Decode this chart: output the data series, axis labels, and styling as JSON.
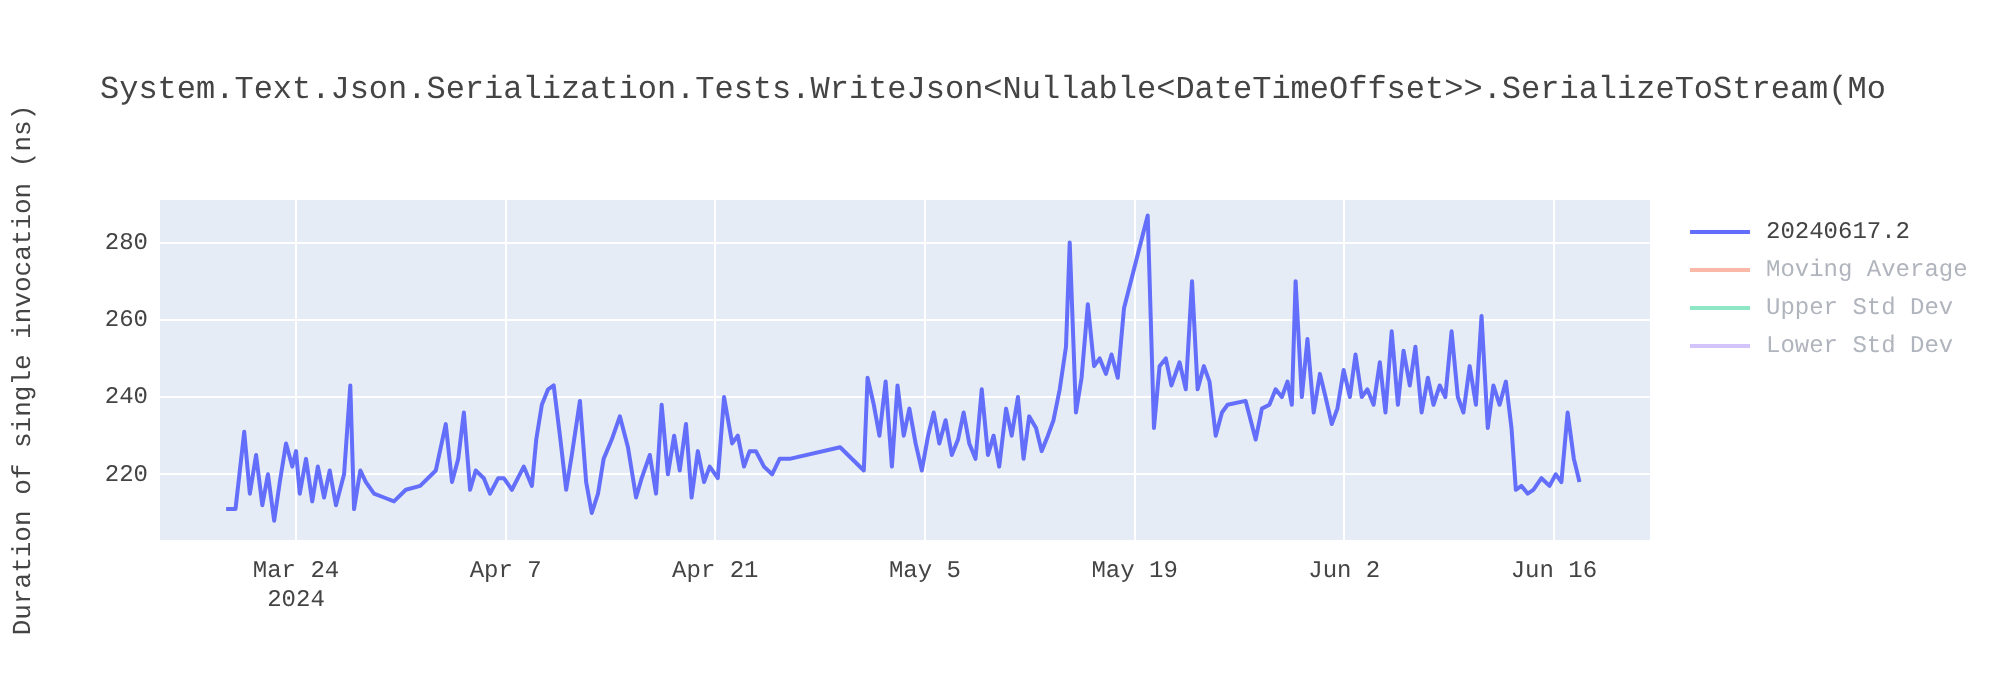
{
  "chart_data": {
    "type": "line",
    "title": "System.Text.Json.Serialization.Tests.WriteJson<Nullable<DateTimeOffset>>.SerializeToStream(Mo",
    "ylabel": "Duration of single invocation (ns)",
    "x": [
      "2024-03-19T08:00",
      "2024-03-19T23:00",
      "2024-03-20T13:00",
      "2024-03-20T22:00",
      "2024-03-21T08:00",
      "2024-03-21T18:00",
      "2024-03-22T03:00",
      "2024-03-22T13:00",
      "2024-03-22T22:00",
      "2024-03-23T08:00",
      "2024-03-23T18:00",
      "2024-03-24T00:00",
      "2024-03-24T06:00",
      "2024-03-24T16:00",
      "2024-03-25T02:00",
      "2024-03-25T11:00",
      "2024-03-25T21:00",
      "2024-03-26T06:00",
      "2024-03-26T16:00",
      "2024-03-27T05:00",
      "2024-03-27T15:00",
      "2024-03-27T21:00",
      "2024-03-28T07:00",
      "2024-03-28T16:00",
      "2024-03-29T05:00",
      "2024-03-29T21:00",
      "2024-03-30T13:00",
      "2024-03-31T08:00",
      "2024-04-01T07:00",
      "2024-04-02T08:00",
      "2024-04-03T00:00",
      "2024-04-03T10:00",
      "2024-04-03T20:00",
      "2024-04-04T05:00",
      "2024-04-04T15:00",
      "2024-04-05T00:00",
      "2024-04-05T13:00",
      "2024-04-05T23:00",
      "2024-04-06T12:00",
      "2024-04-06T21:00",
      "2024-04-07T10:00",
      "2024-04-08T05:00",
      "2024-04-08T18:00",
      "2024-04-09T01:00",
      "2024-04-09T10:00",
      "2024-04-09T20:00",
      "2024-04-10T05:00",
      "2024-04-10T15:00",
      "2024-04-11T01:00",
      "2024-04-11T10:00",
      "2024-04-11T23:00",
      "2024-04-12T09:00",
      "2024-04-12T18:00",
      "2024-04-13T04:00",
      "2024-04-13T13:00",
      "2024-04-14T02:00",
      "2024-04-14T15:00",
      "2024-04-15T04:00",
      "2024-04-15T17:00",
      "2024-04-16T02:00",
      "2024-04-16T15:00",
      "2024-04-17T01:00",
      "2024-04-17T10:00",
      "2024-04-17T20:00",
      "2024-04-18T06:00",
      "2024-04-18T15:00",
      "2024-04-19T01:00",
      "2024-04-19T10:00",
      "2024-04-19T20:00",
      "2024-04-20T06:00",
      "2024-04-20T15:00",
      "2024-04-21T04:00",
      "2024-04-21T14:00",
      "2024-04-22T03:00",
      "2024-04-22T12:00",
      "2024-04-22T22:00",
      "2024-04-23T07:00",
      "2024-04-23T17:00",
      "2024-04-24T06:00",
      "2024-04-24T19:00",
      "2024-04-25T07:00",
      "2024-04-25T23:00",
      "2024-04-29T08:00",
      "2024-04-30T22:00",
      "2024-05-01T04:00",
      "2024-05-01T14:00",
      "2024-05-01T23:00",
      "2024-05-02T09:00",
      "2024-05-02T19:00",
      "2024-05-03T04:00",
      "2024-05-03T14:00",
      "2024-05-03T23:00",
      "2024-05-04T09:00",
      "2024-05-04T19:00",
      "2024-05-05T05:00",
      "2024-05-05T14:00",
      "2024-05-05T23:00",
      "2024-05-06T09:00",
      "2024-05-06T19:00",
      "2024-05-07T05:00",
      "2024-05-07T14:00",
      "2024-05-07T23:00",
      "2024-05-08T09:00",
      "2024-05-08T19:00",
      "2024-05-09T05:00",
      "2024-05-09T14:00",
      "2024-05-09T23:00",
      "2024-05-10T10:00",
      "2024-05-10T19:00",
      "2024-05-11T05:00",
      "2024-05-11T14:00",
      "2024-05-11T23:00",
      "2024-05-12T10:00",
      "2024-05-12T19:00",
      "2024-05-13T05:00",
      "2024-05-13T14:00",
      "2024-05-14T00:00",
      "2024-05-14T10:00",
      "2024-05-14T16:00",
      "2024-05-15T02:00",
      "2024-05-15T11:00",
      "2024-05-15T21:00",
      "2024-05-16T07:00",
      "2024-05-16T16:00",
      "2024-05-17T02:00",
      "2024-05-17T11:00",
      "2024-05-17T21:00",
      "2024-05-18T07:00",
      "2024-05-19T21:00",
      "2024-05-20T07:00",
      "2024-05-20T16:00",
      "2024-05-21T02:00",
      "2024-05-21T11:00",
      "2024-05-22T00:00",
      "2024-05-22T10:00",
      "2024-05-22T20:00",
      "2024-05-23T05:00",
      "2024-05-23T15:00",
      "2024-05-24T00:00",
      "2024-05-24T10:00",
      "2024-05-24T20:00",
      "2024-05-25T05:00",
      "2024-05-26T10:00",
      "2024-05-27T02:00",
      "2024-05-27T12:00",
      "2024-05-28T00:00",
      "2024-05-28T10:00",
      "2024-05-28T20:00",
      "2024-05-29T05:00",
      "2024-05-29T12:00",
      "2024-05-29T18:00",
      "2024-05-30T04:00",
      "2024-05-30T13:00",
      "2024-05-30T23:00",
      "2024-05-31T09:00",
      "2024-05-31T18:00",
      "2024-06-01T04:00",
      "2024-06-01T13:00",
      "2024-06-01T23:00",
      "2024-06-02T09:00",
      "2024-06-02T18:00",
      "2024-06-03T04:00",
      "2024-06-03T13:00",
      "2024-06-03T23:00",
      "2024-06-04T09:00",
      "2024-06-04T18:00",
      "2024-06-05T04:00",
      "2024-06-05T14:00",
      "2024-06-05T23:00",
      "2024-06-06T09:00",
      "2024-06-06T18:00",
      "2024-06-07T04:00",
      "2024-06-07T14:00",
      "2024-06-07T23:00",
      "2024-06-08T09:00",
      "2024-06-08T18:00",
      "2024-06-09T04:00",
      "2024-06-09T14:00",
      "2024-06-09T23:00",
      "2024-06-10T09:00",
      "2024-06-10T19:00",
      "2024-06-11T04:00",
      "2024-06-11T14:00",
      "2024-06-11T23:00",
      "2024-06-12T09:00",
      "2024-06-12T19:00",
      "2024-06-13T04:00",
      "2024-06-13T11:00",
      "2024-06-13T20:00",
      "2024-06-14T06:00",
      "2024-06-14T15:00",
      "2024-06-15T04:00",
      "2024-06-15T17:00",
      "2024-06-16T03:00",
      "2024-06-16T12:00",
      "2024-06-16T22:00",
      "2024-06-17T08:00",
      "2024-06-17T17:00"
    ],
    "series": [
      {
        "name": "20240617.2",
        "color": "#636efa",
        "values": [
          211,
          211,
          231,
          215,
          225,
          212,
          220,
          208,
          218,
          228,
          222,
          226,
          215,
          224,
          213,
          222,
          214,
          221,
          212,
          220,
          243,
          211,
          221,
          218,
          215,
          214,
          213,
          216,
          217,
          221,
          233,
          218,
          224,
          236,
          216,
          221,
          219,
          215,
          219,
          219,
          216,
          222,
          217,
          229,
          238,
          242,
          243,
          230,
          216,
          225,
          239,
          218,
          210,
          215,
          224,
          229,
          235,
          227,
          214,
          219,
          225,
          215,
          238,
          220,
          230,
          221,
          233,
          214,
          226,
          218,
          222,
          219,
          240,
          228,
          230,
          222,
          226,
          226,
          222,
          220,
          224,
          224,
          227,
          221,
          245,
          238,
          230,
          244,
          222,
          243,
          230,
          237,
          228,
          221,
          230,
          236,
          228,
          234,
          225,
          229,
          236,
          228,
          224,
          242,
          225,
          230,
          222,
          237,
          230,
          240,
          224,
          235,
          232,
          226,
          230,
          234,
          242,
          253,
          280,
          236,
          245,
          264,
          248,
          250,
          246,
          251,
          245,
          263,
          287,
          232,
          248,
          250,
          243,
          249,
          242,
          270,
          242,
          248,
          244,
          230,
          236,
          238,
          239,
          229,
          237,
          238,
          242,
          240,
          244,
          238,
          270,
          240,
          255,
          236,
          246,
          240,
          233,
          237,
          247,
          240,
          251,
          240,
          242,
          238,
          249,
          236,
          257,
          238,
          252,
          243,
          253,
          236,
          245,
          238,
          243,
          240,
          257,
          240,
          236,
          248,
          238,
          261,
          232,
          243,
          238,
          244,
          232,
          216,
          217,
          215,
          216,
          219,
          217,
          220,
          218,
          236,
          224,
          218
        ]
      },
      {
        "name": "Moving Average",
        "color": "#f9b8a8",
        "values": [
          null,
          null,
          null,
          null,
          null,
          null,
          null,
          null,
          null,
          null,
          null,
          null,
          null,
          null,
          null,
          null,
          null,
          null,
          null,
          null,
          null,
          null,
          null,
          null,
          null,
          null,
          null,
          null,
          null,
          null,
          null,
          null,
          null,
          null,
          null,
          null,
          null,
          null,
          null,
          null,
          null,
          null,
          null,
          null,
          null,
          null,
          null,
          null,
          null,
          null,
          null,
          null,
          null,
          null,
          null,
          null,
          null,
          null,
          null,
          null,
          null,
          null,
          null,
          null,
          null,
          null,
          null,
          null,
          null,
          null,
          null,
          null,
          null,
          null,
          null,
          null,
          null,
          null,
          null,
          null,
          null,
          null,
          null,
          null,
          null,
          null,
          null,
          null,
          null,
          null,
          null,
          null,
          null,
          null,
          null,
          null,
          null,
          null,
          null,
          null,
          null,
          null,
          null,
          null,
          null,
          null,
          null,
          null,
          null,
          null,
          null,
          null,
          null,
          null,
          null,
          null,
          null,
          null,
          null,
          null,
          null,
          null,
          null,
          null,
          null,
          null,
          null,
          null,
          null,
          null,
          null,
          null,
          null,
          null,
          null,
          null,
          null,
          null,
          null,
          null,
          null,
          null,
          null,
          null,
          null,
          null,
          null,
          null,
          null,
          null,
          null,
          null,
          null,
          null,
          null,
          null,
          null,
          null,
          null,
          null,
          null,
          null,
          null,
          null,
          null,
          null,
          null,
          null,
          null,
          null,
          null,
          null,
          null,
          null,
          null,
          null,
          null,
          null,
          null,
          null,
          null,
          null,
          null,
          null,
          null,
          null,
          null,
          null,
          null,
          null,
          null,
          null,
          null,
          null,
          null,
          null,
          null,
          null
        ]
      },
      {
        "name": "Upper Std Dev",
        "color": "#8ee8c6",
        "values": [
          null,
          null,
          null,
          null,
          null,
          null,
          null,
          null,
          null,
          null,
          null,
          null,
          null,
          null,
          null,
          null,
          null,
          null,
          null,
          null,
          null,
          null,
          null,
          null,
          null,
          null,
          null,
          null,
          null,
          null,
          null,
          null,
          null,
          null,
          null,
          null,
          null,
          null,
          null,
          null,
          null,
          null,
          null,
          null,
          null,
          null,
          null,
          null,
          null,
          null,
          null,
          null,
          null,
          null,
          null,
          null,
          null,
          null,
          null,
          null,
          null,
          null,
          null,
          null,
          null,
          null,
          null,
          null,
          null,
          null,
          null,
          null,
          null,
          null,
          null,
          null,
          null,
          null,
          null,
          null,
          null,
          null,
          null,
          null,
          null,
          null,
          null,
          null,
          null,
          null,
          null,
          null,
          null,
          null,
          null,
          null,
          null,
          null,
          null,
          null,
          null,
          null,
          null,
          null,
          null,
          null,
          null,
          null,
          null,
          null,
          null,
          null,
          null,
          null,
          null,
          null,
          null,
          null,
          null,
          null,
          null,
          null,
          null,
          null,
          null,
          null,
          null,
          null,
          null,
          null,
          null,
          null,
          null,
          null,
          null,
          null,
          null,
          null,
          null,
          null,
          null,
          null,
          null,
          null,
          null,
          null,
          null,
          null,
          null,
          null,
          null,
          null,
          null,
          null,
          null,
          null,
          null,
          null,
          null,
          null,
          null,
          null,
          null,
          null,
          null,
          null,
          null,
          null,
          null,
          null,
          null,
          null,
          null,
          null,
          null,
          null,
          null,
          null,
          null,
          null,
          null,
          null,
          null,
          null,
          null,
          null,
          null,
          null,
          null,
          null,
          null,
          null,
          null,
          null,
          null,
          null,
          null,
          null
        ]
      },
      {
        "name": "Lower Std Dev",
        "color": "#d2c4fb",
        "values": [
          null,
          null,
          null,
          null,
          null,
          null,
          null,
          null,
          null,
          null,
          null,
          null,
          null,
          null,
          null,
          null,
          null,
          null,
          null,
          null,
          null,
          null,
          null,
          null,
          null,
          null,
          null,
          null,
          null,
          null,
          null,
          null,
          null,
          null,
          null,
          null,
          null,
          null,
          null,
          null,
          null,
          null,
          null,
          null,
          null,
          null,
          null,
          null,
          null,
          null,
          null,
          null,
          null,
          null,
          null,
          null,
          null,
          null,
          null,
          null,
          null,
          null,
          null,
          null,
          null,
          null,
          null,
          null,
          null,
          null,
          null,
          null,
          null,
          null,
          null,
          null,
          null,
          null,
          null,
          null,
          null,
          null,
          null,
          null,
          null,
          null,
          null,
          null,
          null,
          null,
          null,
          null,
          null,
          null,
          null,
          null,
          null,
          null,
          null,
          null,
          null,
          null,
          null,
          null,
          null,
          null,
          null,
          null,
          null,
          null,
          null,
          null,
          null,
          null,
          null,
          null,
          null,
          null,
          null,
          null,
          null,
          null,
          null,
          null,
          null,
          null,
          null,
          null,
          null,
          null,
          null,
          null,
          null,
          null,
          null,
          null,
          null,
          null,
          null,
          null,
          null,
          null,
          null,
          null,
          null,
          null,
          null,
          null,
          null,
          null,
          null,
          null,
          null,
          null,
          null,
          null,
          null,
          null,
          null,
          null,
          null,
          null,
          null,
          null,
          null,
          null,
          null,
          null,
          null,
          null,
          null,
          null,
          null,
          null,
          null,
          null,
          null,
          null,
          null,
          null,
          null,
          null,
          null,
          null,
          null,
          null,
          null,
          null,
          null,
          null,
          null,
          null,
          null,
          null,
          null,
          null,
          null,
          null
        ]
      }
    ],
    "xlim": [
      "2024-03-14T22:00",
      "2024-06-22T10:00"
    ],
    "xticks": [
      {
        "value": "2024-03-24",
        "label": "Mar 24\n2024"
      },
      {
        "value": "2024-04-07",
        "label": "Apr 7"
      },
      {
        "value": "2024-04-21",
        "label": "Apr 21"
      },
      {
        "value": "2024-05-05",
        "label": "May 5"
      },
      {
        "value": "2024-05-19",
        "label": "May 19"
      },
      {
        "value": "2024-06-02",
        "label": "Jun 2"
      },
      {
        "value": "2024-06-16",
        "label": "Jun 16"
      }
    ],
    "ylim": [
      203,
      291
    ],
    "yticks": [
      220,
      240,
      260,
      280
    ],
    "grid": true,
    "legend": "right",
    "marker": "none",
    "line_style": "solid"
  }
}
